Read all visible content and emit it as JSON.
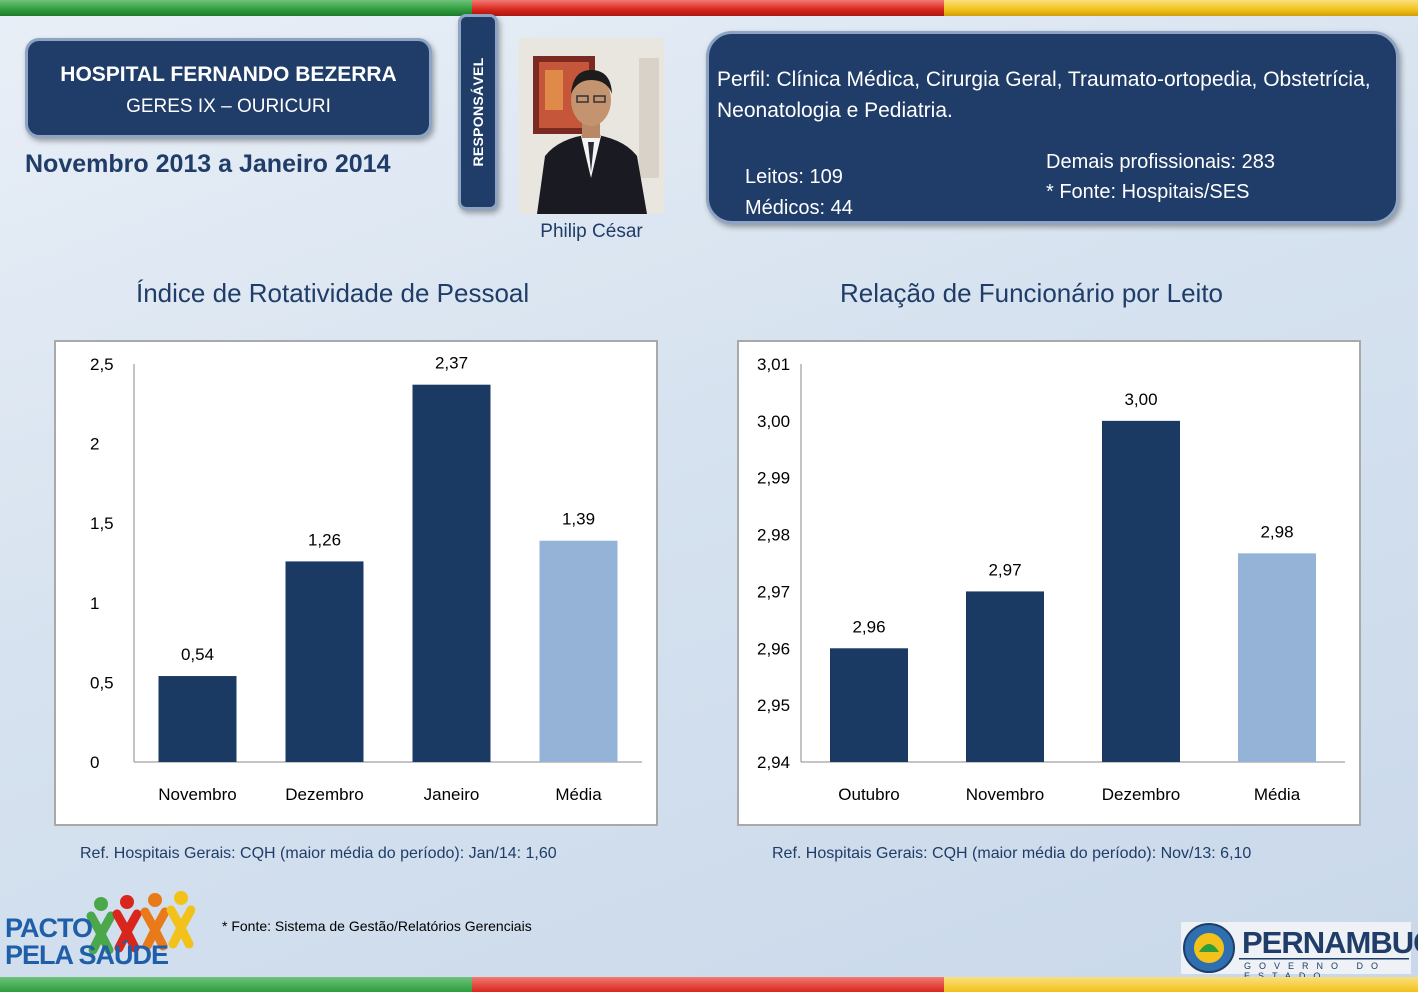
{
  "colors": {
    "navy": "#1f3d68",
    "bar_dark": "#1b3a63",
    "bar_light": "#95b3d7",
    "stripe_green": "#2e9d3c",
    "stripe_red": "#d9261c",
    "stripe_yellow": "#f2c21a"
  },
  "header": {
    "hospital_name": "HOSPITAL FERNANDO BEZERRA",
    "region": "GERES IX – OURICURI",
    "period": "Novembro 2013 a Janeiro 2014",
    "responsible_label": "RESPONSÁVEL",
    "responsible_name": "Philip César"
  },
  "profile": {
    "text": "Perfil: Clínica Médica, Cirurgia Geral, Traumato-ortopedia, Obstetrícia, Neonatologia e Pediatria.",
    "beds": "Leitos: 109",
    "doctors": "Médicos: 44",
    "other_staff": "Demais profissionais: 283",
    "source": "* Fonte: Hospitais/SES"
  },
  "chart_data": [
    {
      "type": "bar",
      "title": "Índice de Rotatividade de Pessoal",
      "categories": [
        "Novembro",
        "Dezembro",
        "Janeiro",
        "Média"
      ],
      "values": [
        0.54,
        1.26,
        2.37,
        1.39
      ],
      "value_labels": [
        "0,54",
        "1,26",
        "2,37",
        "1,39"
      ],
      "highlight": [
        false,
        false,
        false,
        true
      ],
      "ylim": [
        0,
        2.5
      ],
      "yticks": [
        0,
        0.5,
        1,
        1.5,
        2,
        2.5
      ],
      "ytick_labels": [
        "0",
        "0,5",
        "1",
        "1,5",
        "2",
        "2,5"
      ],
      "reference": "Ref. Hospitais Gerais: CQH  (maior média do período): Jan/14: 1,60"
    },
    {
      "type": "bar",
      "title": "Relação de Funcionário por Leito",
      "categories": [
        "Outubro",
        "Novembro",
        "Dezembro",
        "Média"
      ],
      "values": [
        2.96,
        2.97,
        3.0,
        2.9767
      ],
      "value_labels": [
        "2,96",
        "2,97",
        "3,00",
        "2,98"
      ],
      "highlight": [
        false,
        false,
        false,
        true
      ],
      "ylim": [
        2.94,
        3.01
      ],
      "yticks": [
        2.94,
        2.95,
        2.96,
        2.97,
        2.98,
        2.99,
        3.0,
        3.01
      ],
      "ytick_labels": [
        "2,94",
        "2,95",
        "2,96",
        "2,97",
        "2,98",
        "2,99",
        "3,00",
        "3,01"
      ],
      "reference": "Ref. Hospitais Gerais: CQH  (maior média do período): Nov/13: 6,10"
    }
  ],
  "footer": {
    "source": "* Fonte: Sistema de Gestão/Relatórios Gerenciais",
    "program_line1": "PACTO",
    "program_line2": "PELA SAÚDE",
    "state_name": "PERNAMBUCO",
    "state_subtitle": "GOVERNO DO ESTADO"
  }
}
